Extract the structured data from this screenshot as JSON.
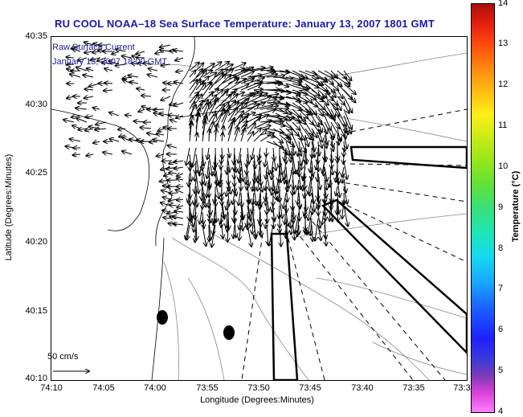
{
  "title": "RU COOL  NOAA–18  Sea Surface Temperature:  January 13, 2007 1801 GMT",
  "inset": {
    "line1": "Raw Surface Current",
    "line2": "January 13, 2007 18:00 GMT"
  },
  "axes": {
    "xlabel": "Longitude (Degrees:Minutes)",
    "ylabel": "Latitude (Degrees:Minutes)",
    "xticks": [
      "74:10",
      "74:05",
      "74:00",
      "73:55",
      "73:50",
      "73:45",
      "73:40",
      "73:35",
      "73:3"
    ],
    "yticks": [
      "40:35",
      "40:30",
      "40:25",
      "40:20",
      "40:15",
      "40:10"
    ]
  },
  "colorbar": {
    "label": "Temperature (°C)",
    "ticks": [
      "14",
      "13",
      "12",
      "11",
      "10",
      "9",
      "8",
      "7",
      "6",
      "5",
      "4"
    ]
  },
  "scale_arrow": {
    "label": "50 cm/s"
  }
}
